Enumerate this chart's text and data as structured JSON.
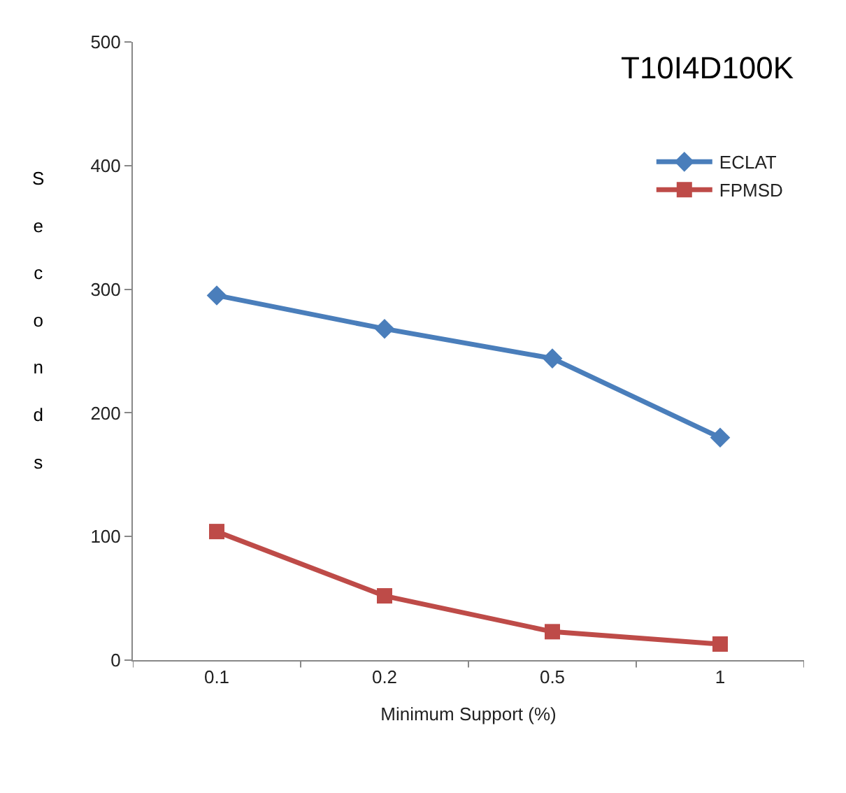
{
  "chart_data": {
    "type": "line",
    "title": "T10I4D100K",
    "xlabel": "Minimum Support (%)",
    "ylabel": "Seconds",
    "categories": [
      "0.1",
      "0.2",
      "0.5",
      "1"
    ],
    "series": [
      {
        "name": "ECLAT",
        "color": "#4a7ebb",
        "marker": "diamond",
        "values": [
          295,
          268,
          244,
          180
        ]
      },
      {
        "name": "FPMSD",
        "color": "#be4b48",
        "marker": "square",
        "values": [
          104,
          52,
          23,
          13
        ]
      }
    ],
    "ylim": [
      0,
      500
    ],
    "yticks": [
      0,
      100,
      200,
      300,
      400,
      500
    ],
    "legend": "top right",
    "line_style": "solid"
  }
}
